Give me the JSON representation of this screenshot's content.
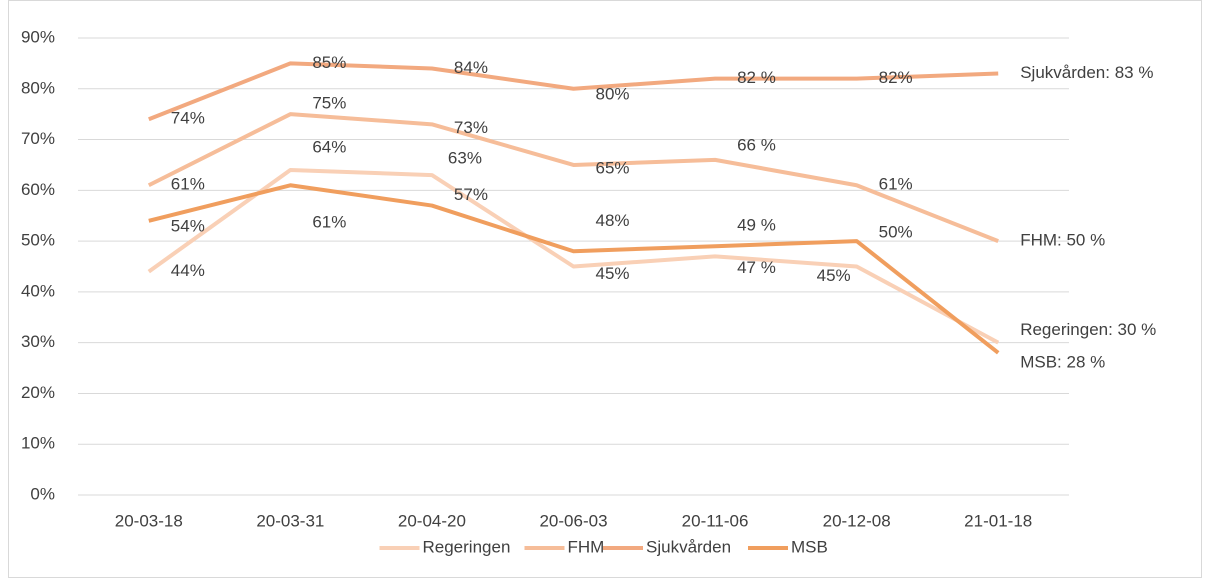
{
  "chart_data": {
    "type": "line",
    "categories": [
      "20-03-18",
      "20-03-31",
      "20-04-20",
      "20-06-03",
      "20-11-06",
      "20-12-08",
      "21-01-18"
    ],
    "series": [
      {
        "name": "Regeringen",
        "color": "#f9d0b6",
        "values": [
          44,
          64,
          63,
          45,
          47,
          45,
          30
        ],
        "value_labels": [
          "44%",
          "64%",
          "63%",
          "45%",
          "47 %",
          "45%",
          "Regeringen: 30 %"
        ]
      },
      {
        "name": "FHM",
        "color": "#f6bd99",
        "values": [
          61,
          75,
          73,
          65,
          66,
          61,
          50
        ],
        "value_labels": [
          "61%",
          "75%",
          "73%",
          "65%",
          "66 %",
          "61%",
          "FHM: 50 %"
        ]
      },
      {
        "name": "Sjukvården",
        "color": "#f2a97f",
        "values": [
          74,
          85,
          84,
          80,
          82,
          82,
          83
        ],
        "value_labels": [
          "74%",
          "85%",
          "84%",
          "80%",
          "82 %",
          "82%",
          "Sjukvården: 83 %"
        ]
      },
      {
        "name": "MSB",
        "color": "#f09e5e",
        "values": [
          54,
          61,
          57,
          48,
          49,
          50,
          28
        ],
        "value_labels": [
          "54%",
          "61%",
          "57%",
          "48%",
          "49 %",
          "50%",
          "MSB: 28 %"
        ]
      }
    ],
    "ylim": [
      0,
      90
    ],
    "yticks": [
      {
        "value": 0,
        "label": "0%"
      },
      {
        "value": 10,
        "label": "10%"
      },
      {
        "value": 20,
        "label": "20%"
      },
      {
        "value": 30,
        "label": "30%"
      },
      {
        "value": 40,
        "label": "40%"
      },
      {
        "value": 50,
        "label": "50%"
      },
      {
        "value": 60,
        "label": "60%"
      },
      {
        "value": 70,
        "label": "70%"
      },
      {
        "value": 80,
        "label": "80%"
      },
      {
        "value": 90,
        "label": "90%"
      }
    ],
    "grid": true,
    "legend": "bottom"
  }
}
